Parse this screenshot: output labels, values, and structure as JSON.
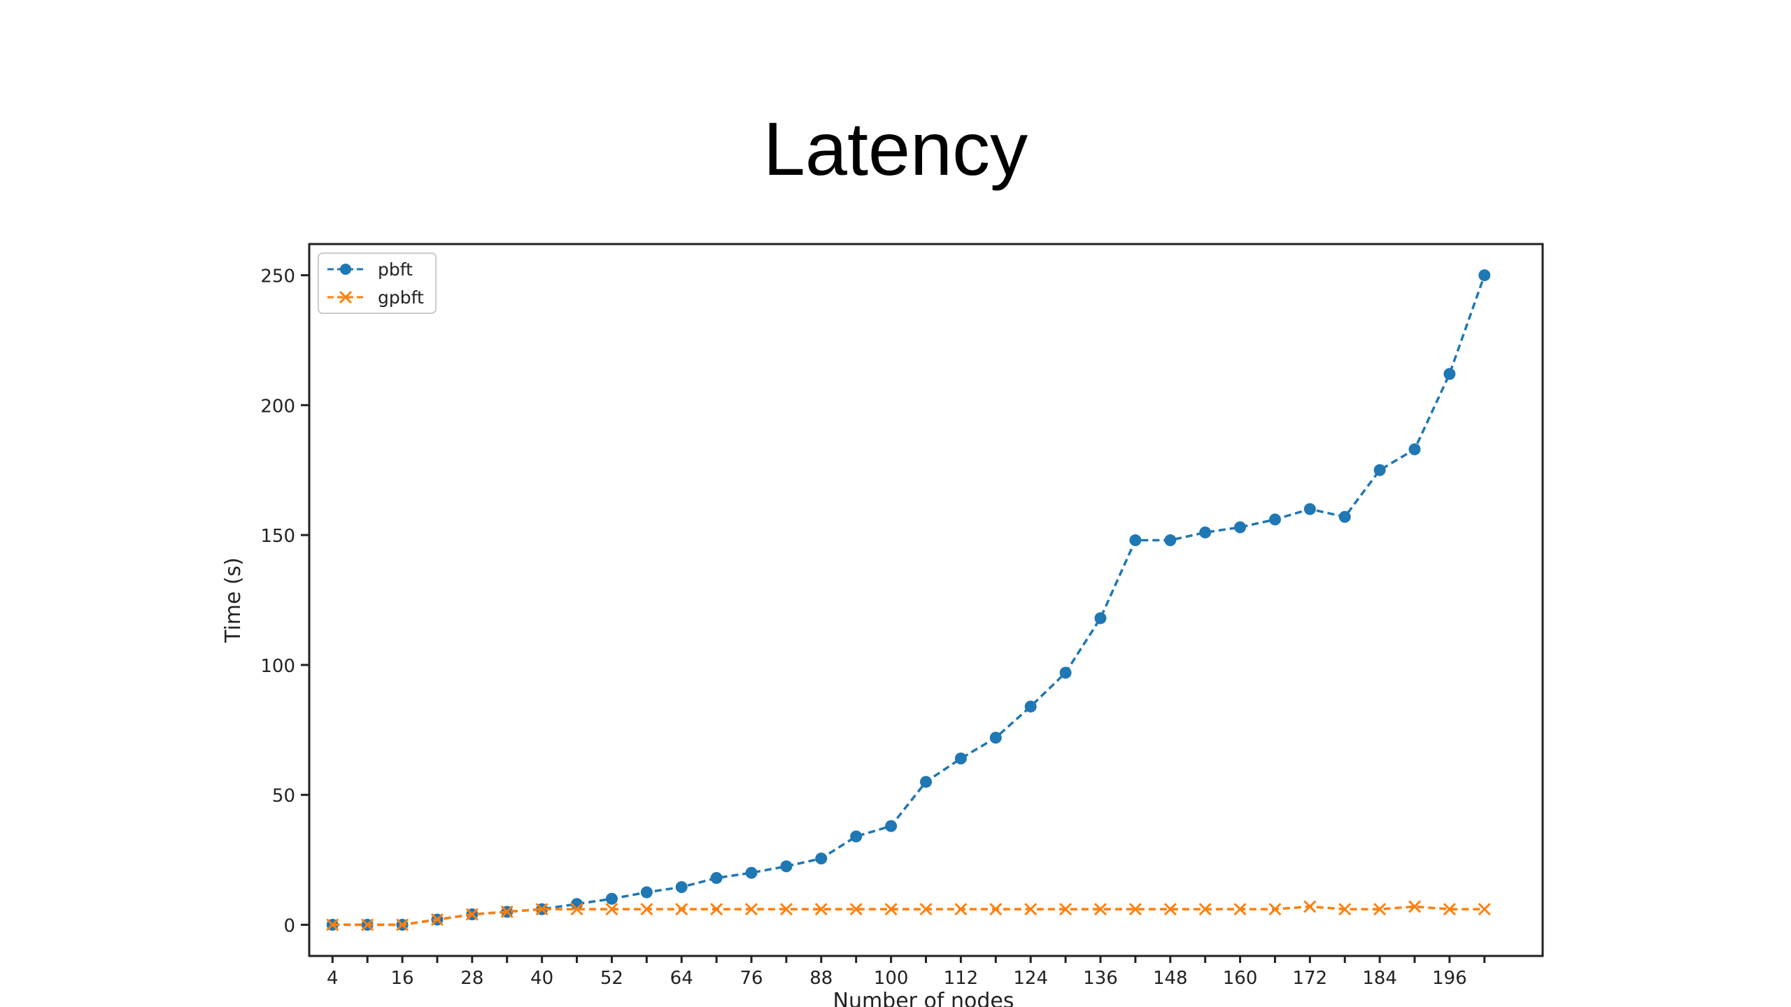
{
  "slide": {
    "title": "Latency"
  },
  "colors": {
    "pbft": "#1f77b4",
    "gpbft": "#ff7f0e"
  },
  "chart_data": {
    "type": "line",
    "xlabel": "Number of nodes",
    "ylabel": "Time (s)",
    "xlim": [
      0,
      212
    ],
    "ylim": [
      -12,
      262
    ],
    "xticks": [
      4,
      10,
      16,
      22,
      28,
      34,
      40,
      46,
      52,
      58,
      64,
      70,
      76,
      82,
      88,
      94,
      100,
      106,
      112,
      118,
      124,
      130,
      136,
      142,
      148,
      154,
      160,
      166,
      172,
      178,
      184,
      190,
      196,
      202
    ],
    "xtick_labels": [
      "4",
      "",
      "16",
      "",
      "28",
      "",
      "40",
      "",
      "52",
      "",
      "64",
      "",
      "76",
      "",
      "88",
      "",
      "100",
      "",
      "112",
      "",
      "124",
      "",
      "136",
      "",
      "148",
      "",
      "160",
      "",
      "172",
      "",
      "184",
      "",
      "196",
      ""
    ],
    "yticks": [
      0,
      50,
      100,
      150,
      200,
      250
    ],
    "ytick_labels": [
      "0",
      "50",
      "100",
      "150",
      "200",
      "250"
    ],
    "legend_position": "top-left",
    "grid": false,
    "x": [
      4,
      10,
      16,
      22,
      28,
      34,
      40,
      46,
      52,
      58,
      64,
      70,
      76,
      82,
      88,
      94,
      100,
      106,
      112,
      118,
      124,
      130,
      136,
      142,
      148,
      154,
      160,
      166,
      172,
      178,
      184,
      190,
      196,
      202
    ],
    "series": [
      {
        "name": "pbft",
        "marker": "circle",
        "values": [
          0,
          0,
          0,
          2,
          4,
          5,
          6,
          8,
          10,
          12.5,
          14.5,
          18,
          20,
          22.5,
          25.5,
          34,
          38,
          55,
          64,
          72,
          84,
          97,
          118,
          148,
          148,
          151,
          153,
          156,
          160,
          157,
          175,
          183,
          212,
          250
        ]
      },
      {
        "name": "gpbft",
        "marker": "x",
        "values": [
          0,
          0,
          0,
          2,
          4,
          5,
          6,
          6,
          6,
          6,
          6,
          6,
          6,
          6,
          6,
          6,
          6,
          6,
          6,
          6,
          6,
          6,
          6,
          6,
          6,
          6,
          6,
          6,
          7,
          6,
          6,
          7,
          6,
          6
        ]
      }
    ]
  }
}
